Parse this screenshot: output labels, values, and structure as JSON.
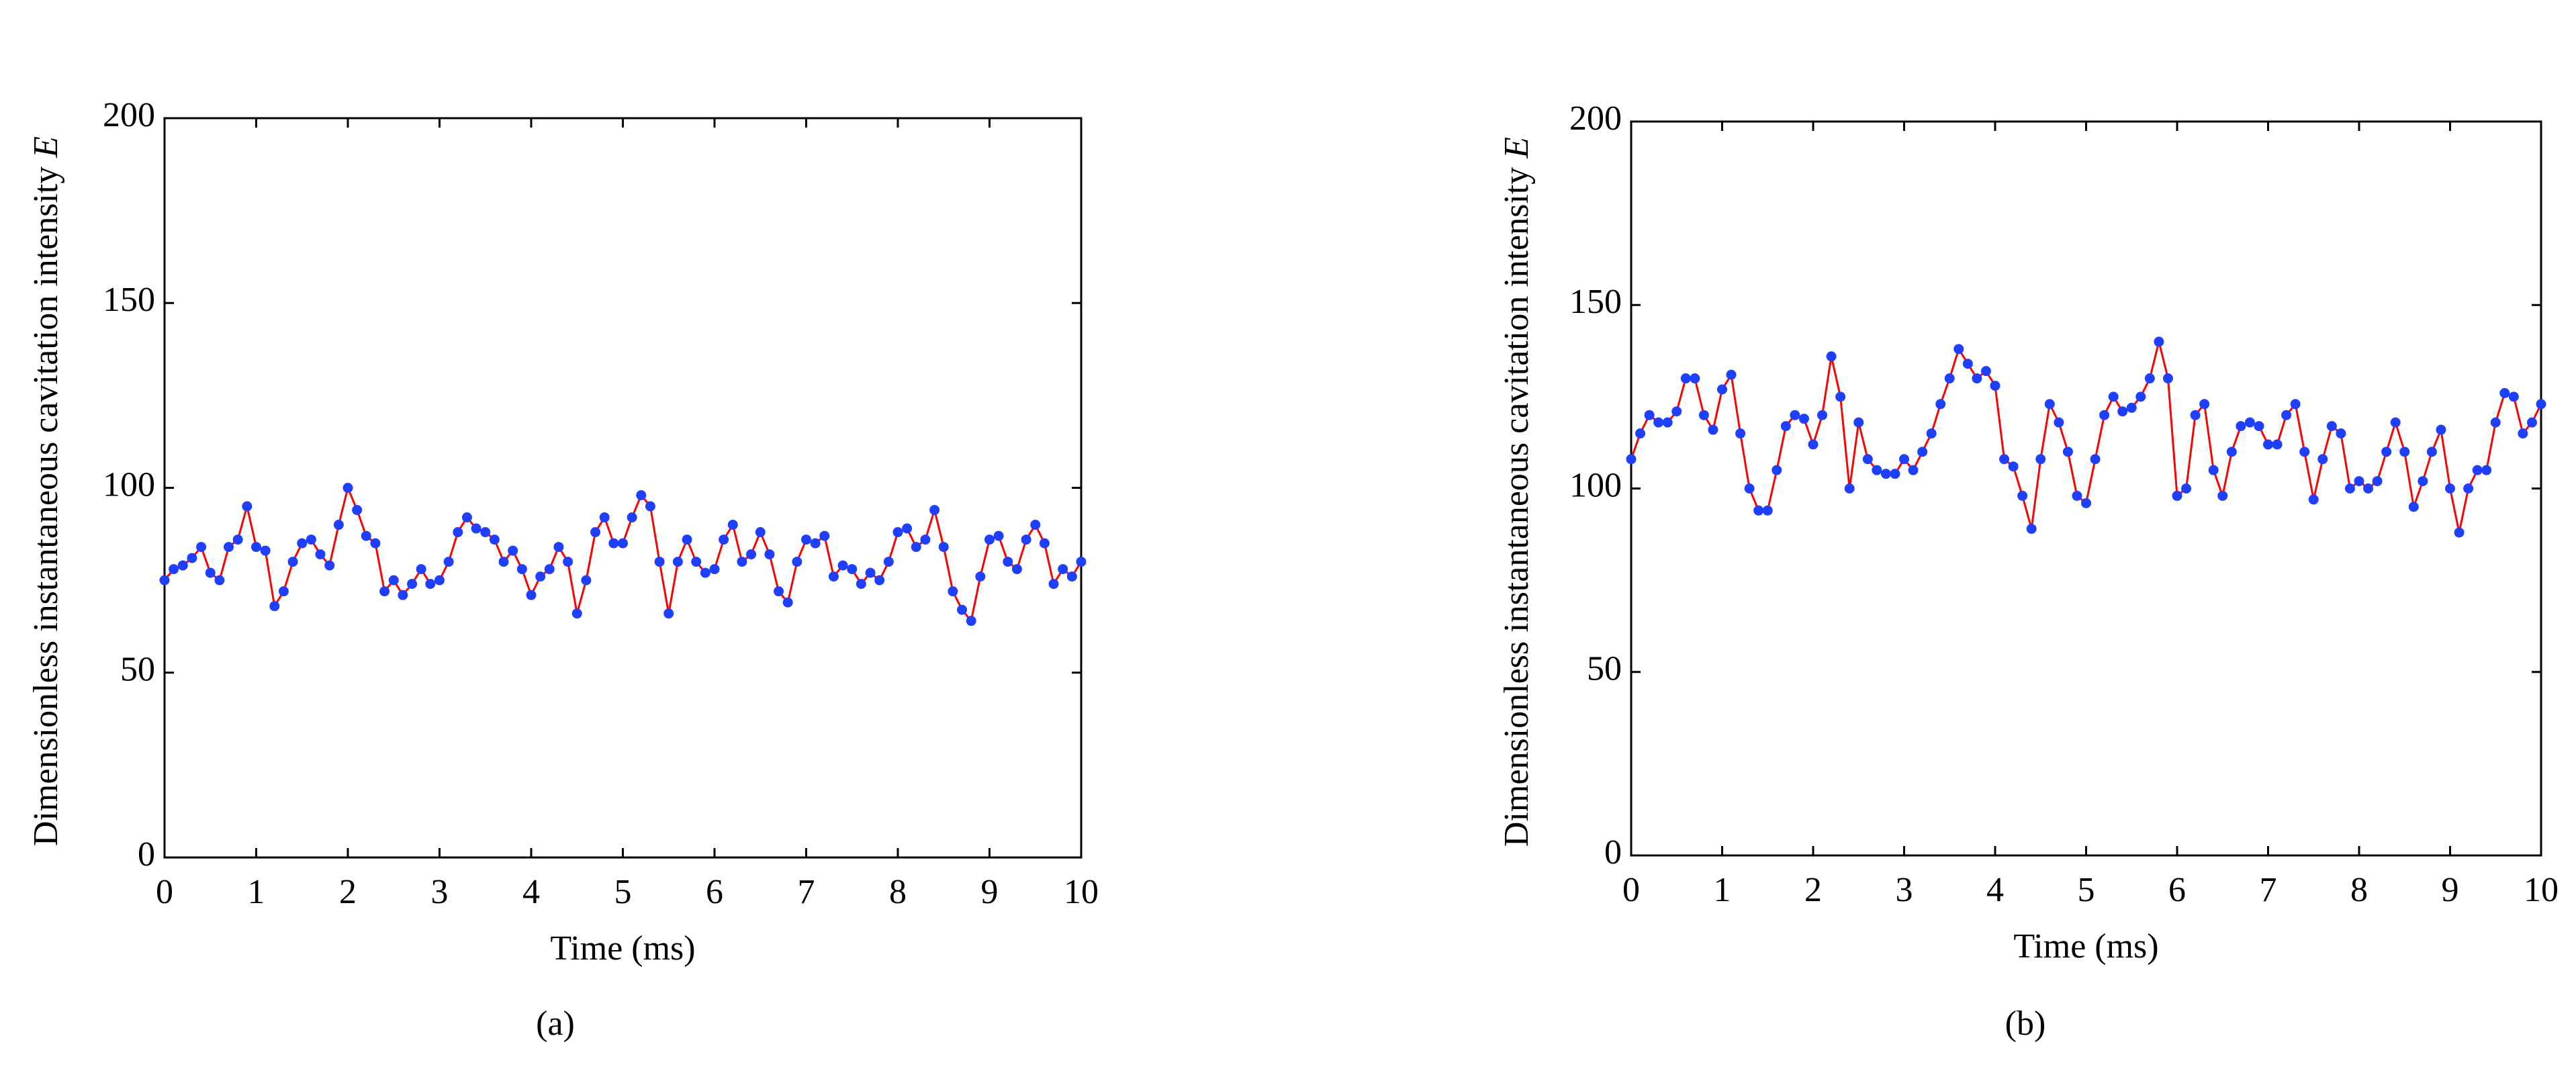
{
  "chart_data": [
    {
      "type": "line",
      "panel_label": "(a)",
      "xlabel": "Time (ms)",
      "ylabel": "Dimensionless instantaneous cavitation intensity",
      "ylabel_symbol": "E",
      "line_color": "#ff0000",
      "marker_color": "#1f3fff",
      "xlim": [
        0,
        10
      ],
      "xticks": [
        0,
        1,
        2,
        3,
        4,
        5,
        6,
        7,
        8,
        9,
        10
      ],
      "ylim": [
        0,
        200
      ],
      "yticks": [
        0,
        50,
        100,
        150,
        200
      ],
      "x": [
        0,
        0.1,
        0.2,
        0.3,
        0.4,
        0.5,
        0.6,
        0.7,
        0.8,
        0.9,
        1,
        1.1,
        1.2,
        1.3,
        1.4,
        1.5,
        1.6,
        1.7,
        1.8,
        1.9,
        2,
        2.1,
        2.2,
        2.3,
        2.4,
        2.5,
        2.6,
        2.7,
        2.8,
        2.9,
        3,
        3.1,
        3.2,
        3.3,
        3.4,
        3.5,
        3.6,
        3.7,
        3.8,
        3.9,
        4,
        4.1,
        4.2,
        4.3,
        4.4,
        4.5,
        4.6,
        4.7,
        4.8,
        4.9,
        5,
        5.1,
        5.2,
        5.3,
        5.4,
        5.5,
        5.6,
        5.7,
        5.8,
        5.9,
        6,
        6.1,
        6.2,
        6.3,
        6.4,
        6.5,
        6.6,
        6.7,
        6.8,
        6.9,
        7,
        7.1,
        7.2,
        7.3,
        7.4,
        7.5,
        7.6,
        7.7,
        7.8,
        7.9,
        8,
        8.1,
        8.2,
        8.3,
        8.4,
        8.5,
        8.6,
        8.7,
        8.8,
        8.9,
        9,
        9.1,
        9.2,
        9.3,
        9.4,
        9.5,
        9.6,
        9.7,
        9.8,
        9.9,
        10
      ],
      "values": [
        75,
        78,
        79,
        81,
        84,
        77,
        75,
        84,
        86,
        95,
        84,
        83,
        68,
        72,
        80,
        85,
        86,
        82,
        79,
        90,
        100,
        94,
        87,
        85,
        72,
        75,
        71,
        74,
        78,
        74,
        75,
        80,
        88,
        92,
        89,
        88,
        86,
        80,
        83,
        78,
        71,
        76,
        78,
        84,
        80,
        66,
        75,
        88,
        92,
        85,
        85,
        92,
        98,
        95,
        80,
        66,
        80,
        86,
        80,
        77,
        78,
        86,
        90,
        80,
        82,
        88,
        82,
        72,
        69,
        80,
        86,
        85,
        87,
        76,
        79,
        78,
        74,
        77,
        75,
        80,
        88,
        89,
        84,
        86,
        94,
        84,
        72,
        67,
        64,
        76,
        86,
        87,
        80,
        78,
        86,
        90,
        85,
        74,
        78,
        76,
        80
      ]
    },
    {
      "type": "line",
      "panel_label": "(b)",
      "xlabel": "Time (ms)",
      "ylabel": "Dimensionless instantaneous cavitation intensity",
      "ylabel_symbol": "E",
      "line_color": "#ff0000",
      "marker_color": "#1f3fff",
      "xlim": [
        0,
        10
      ],
      "xticks": [
        0,
        1,
        2,
        3,
        4,
        5,
        6,
        7,
        8,
        9,
        10
      ],
      "ylim": [
        0,
        200
      ],
      "yticks": [
        0,
        50,
        100,
        150,
        200
      ],
      "x": [
        0,
        0.1,
        0.2,
        0.3,
        0.4,
        0.5,
        0.6,
        0.7,
        0.8,
        0.9,
        1,
        1.1,
        1.2,
        1.3,
        1.4,
        1.5,
        1.6,
        1.7,
        1.8,
        1.9,
        2,
        2.1,
        2.2,
        2.3,
        2.4,
        2.5,
        2.6,
        2.7,
        2.8,
        2.9,
        3,
        3.1,
        3.2,
        3.3,
        3.4,
        3.5,
        3.6,
        3.7,
        3.8,
        3.9,
        4,
        4.1,
        4.2,
        4.3,
        4.4,
        4.5,
        4.6,
        4.7,
        4.8,
        4.9,
        5,
        5.1,
        5.2,
        5.3,
        5.4,
        5.5,
        5.6,
        5.7,
        5.8,
        5.9,
        6,
        6.1,
        6.2,
        6.3,
        6.4,
        6.5,
        6.6,
        6.7,
        6.8,
        6.9,
        7,
        7.1,
        7.2,
        7.3,
        7.4,
        7.5,
        7.6,
        7.7,
        7.8,
        7.9,
        8,
        8.1,
        8.2,
        8.3,
        8.4,
        8.5,
        8.6,
        8.7,
        8.8,
        8.9,
        9,
        9.1,
        9.2,
        9.3,
        9.4,
        9.5,
        9.6,
        9.7,
        9.8,
        9.9,
        10
      ],
      "values": [
        108,
        115,
        120,
        118,
        118,
        121,
        130,
        130,
        120,
        116,
        127,
        131,
        115,
        100,
        94,
        94,
        105,
        117,
        120,
        119,
        112,
        120,
        136,
        125,
        100,
        118,
        108,
        105,
        104,
        104,
        108,
        105,
        110,
        115,
        123,
        130,
        138,
        134,
        130,
        132,
        128,
        108,
        106,
        98,
        89,
        108,
        123,
        118,
        110,
        98,
        96,
        108,
        120,
        125,
        121,
        122,
        125,
        130,
        140,
        130,
        98,
        100,
        120,
        123,
        105,
        98,
        110,
        117,
        118,
        117,
        112,
        112,
        120,
        123,
        110,
        97,
        108,
        117,
        115,
        100,
        102,
        100,
        102,
        110,
        118,
        110,
        95,
        102,
        110,
        116,
        100,
        88,
        100,
        105,
        105,
        118,
        126,
        125,
        115,
        118,
        123
      ]
    }
  ]
}
